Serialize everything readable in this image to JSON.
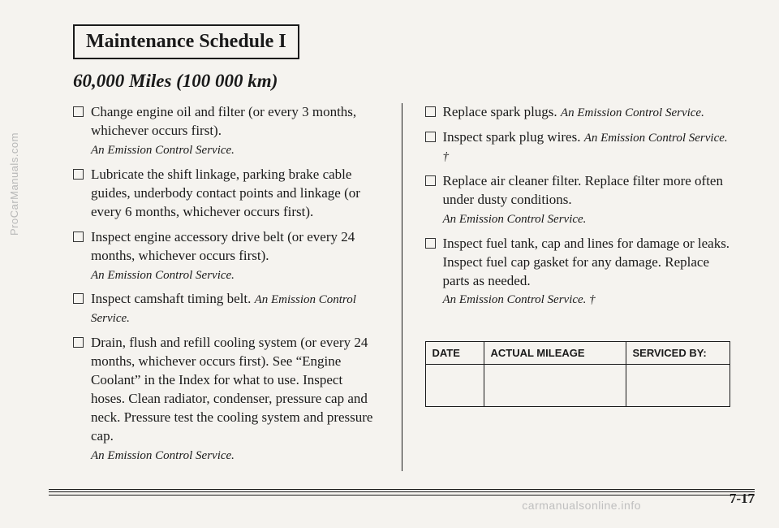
{
  "side_watermark": "ProCarManuals.com",
  "title": "Maintenance Schedule I",
  "mileage_heading": "60,000 Miles (100 000 km)",
  "left_items": [
    {
      "text": "Change engine oil and filter (or every 3 months, whichever occurs first).",
      "emission": "An Emission Control Service."
    },
    {
      "text": "Lubricate the shift linkage, parking brake cable guides, underbody contact points and linkage (or every 6 months, whichever occurs first).",
      "emission": ""
    },
    {
      "text": "Inspect engine accessory drive belt (or every 24 months, whichever occurs first).",
      "emission": "An Emission Control Service."
    },
    {
      "text": "Inspect camshaft timing belt.",
      "emission": "An Emission Control Service.",
      "inline": true
    },
    {
      "text": "Drain, flush and refill cooling system (or every 24 months, whichever occurs first). See “Engine Coolant” in the Index for what to use. Inspect hoses. Clean radiator, condenser, pressure cap and neck. Pressure test the cooling system and pressure cap.",
      "emission": "An Emission Control Service."
    }
  ],
  "right_items": [
    {
      "text": "Replace spark plugs.",
      "emission": "An Emission Control Service.",
      "inline": true
    },
    {
      "text": "Inspect spark plug wires.",
      "emission": "An Emission Control Service. †",
      "inline": true
    },
    {
      "text": "Replace air cleaner filter. Replace filter more often under dusty conditions.",
      "emission": "An Emission Control Service."
    },
    {
      "text": "Inspect fuel tank, cap and lines for damage or leaks. Inspect fuel cap gasket for any damage. Replace parts as needed.",
      "emission": "An Emission Control Service. †"
    }
  ],
  "table": {
    "headers": [
      "DATE",
      "ACTUAL MILEAGE",
      "SERVICED BY:"
    ]
  },
  "page_number": "7-17",
  "bottom_watermark": "carmanualsonline.info"
}
